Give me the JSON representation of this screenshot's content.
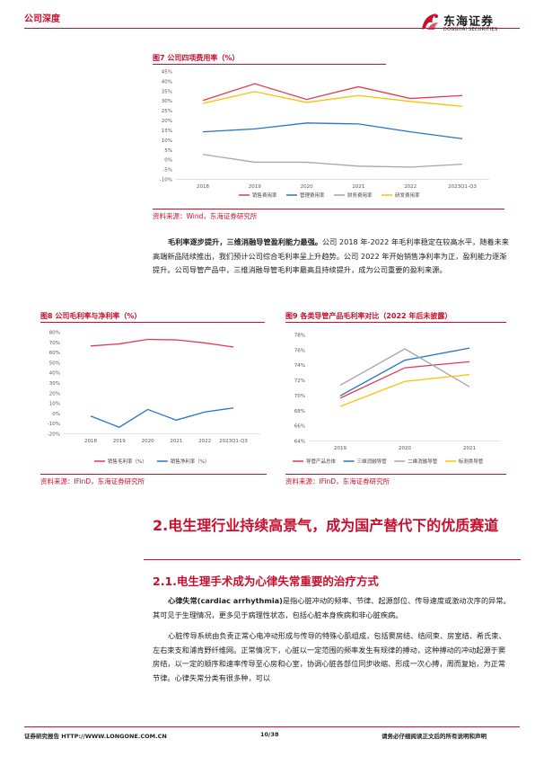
{
  "header": {
    "section": "公司深度",
    "logo_cn": "东海证券",
    "logo_en": "DONGHAI SECURITIES"
  },
  "figure7": {
    "title": "图7  公司四项费用率（%）",
    "source": "资料来源：Wind，东海证券研究所"
  },
  "paragraph1": {
    "lead": "毛利率逐步提升，三维消融导管盈利能力最强。",
    "body": "公司 2018 年-2022 年毛利率稳定在较高水平，随着未来高端新品陆续推出，我们预计公司综合毛利率呈上升趋势。公司 2022 年开始销售净利率为正，盈利能力逐渐提升。公司导管产品中，三维消融导管毛利率最高且持续提升，成为公司重要的盈利来源。"
  },
  "figure8": {
    "title": "图8  公司毛利率与净利率（%）",
    "source": "资料来源：IFinD，东海证券研究所"
  },
  "figure9": {
    "title": "图9  各类导管产品毛利率对比（2022 年后未披露）",
    "source": "资料来源：IFinD，东海证券研究所"
  },
  "section2": {
    "heading": "2.电生理行业持续高景气，成为国产替代下的优质赛道",
    "sub": "2.1.电生理手术成为心律失常重要的治疗方式"
  },
  "paragraph2": {
    "lead": "心律失常(cardiac arrhythmia)",
    "body": "是指心脏冲动的频率、节律、起源部位、传导速度或激动次序的异常。其可见于生理情况，更多见于病理性状态，包括心脏本身疾病和非心脏疾病。"
  },
  "paragraph3": {
    "body": "心脏传导系统由负责正常心电冲动形成与传导的特殊心肌组成，包括窦房结、结间束、房室结、希氏束、左右束支和浦肯野纤维网。正常情况下，心脏以一定范围的频率发生有规律的搏动，这种搏动的冲动起源于窦房结，以一定的顺序和速率传导至心房和心室，协调心脏各部位同步收缩、形成一次心搏，周而复始，为正常节律。心律失常分类有很多种，可以"
  },
  "footer": {
    "left": "证券研究报告    HTTP://WWW.LONGONE.COM.CN",
    "page": "10/38",
    "right": "请务必仔细阅读正文后的所有说明和声明"
  },
  "chart_data": [
    {
      "type": "line",
      "categories": [
        "2018",
        "2019",
        "2020",
        "2021",
        "2022",
        "2023Q1-Q3"
      ],
      "ylim": [
        -10,
        45
      ],
      "yticks": [
        "45%",
        "40%",
        "35%",
        "30%",
        "25%",
        "20%",
        "15%",
        "10%",
        "5%",
        "0%",
        "-5%",
        "-10%"
      ],
      "grid": false,
      "legend": "bottom",
      "series": [
        {
          "name": "销售费用率",
          "color": "#e8384f",
          "values": [
            30,
            38.5,
            30.5,
            37,
            31,
            32.5
          ]
        },
        {
          "name": "管理费用率",
          "color": "#2a73c9",
          "values": [
            14,
            15.5,
            18.5,
            18,
            14,
            10.5
          ]
        },
        {
          "name": "财务费用率",
          "color": "#a6a6a6",
          "values": [
            2.5,
            -1.5,
            -1.5,
            -3.5,
            -4,
            -2.5
          ]
        },
        {
          "name": "研发费用率",
          "color": "#ffc000",
          "values": [
            28.5,
            34.5,
            29,
            32.5,
            29.5,
            27
          ]
        }
      ]
    },
    {
      "type": "line",
      "categories": [
        "2018",
        "2019",
        "2020",
        "2021",
        "2022",
        "2023Q1-Q3"
      ],
      "ylim": [
        -20,
        80
      ],
      "yticks": [
        "80%",
        "70%",
        "60%",
        "50%",
        "40%",
        "30%",
        "20%",
        "10%",
        "0%",
        "-10%",
        "-20%"
      ],
      "grid": false,
      "legend": "bottom",
      "series": [
        {
          "name": "销售毛利率（%）",
          "color": "#e8384f",
          "values": [
            66,
            68,
            72.5,
            72,
            69,
            65
          ]
        },
        {
          "name": "销售净利率（%）",
          "color": "#2a73c9",
          "values": [
            -3,
            -14,
            3.5,
            -7,
            1,
            5
          ]
        }
      ]
    },
    {
      "type": "line",
      "categories": [
        "2019",
        "2020",
        "2021"
      ],
      "ylim": [
        64,
        78
      ],
      "yticks": [
        "78%",
        "76%",
        "74%",
        "72%",
        "70%",
        "68%",
        "66%",
        "64%"
      ],
      "grid": false,
      "legend": "bottom",
      "series": [
        {
          "name": "导管产品总体",
          "color": "#e8384f",
          "values": [
            69.6,
            73.6,
            74.4
          ]
        },
        {
          "name": "三维消融导管",
          "color": "#2a73c9",
          "values": [
            69.9,
            74.6,
            76.2
          ]
        },
        {
          "name": "二维消融导管",
          "color": "#a6a6a6",
          "values": [
            71.3,
            76.1,
            71.1
          ]
        },
        {
          "name": "标测类导管",
          "color": "#ffc000",
          "values": [
            68.5,
            71.8,
            72.7
          ]
        }
      ]
    }
  ]
}
